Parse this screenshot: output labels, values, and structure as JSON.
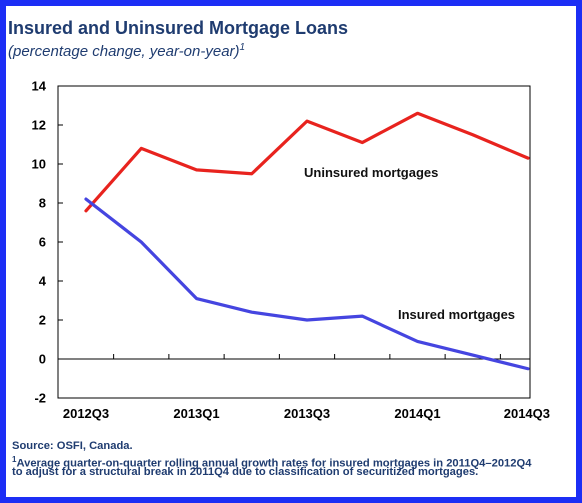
{
  "header": {
    "title": "Insured and Uninsured Mortgage Loans",
    "subtitle": "(percentage change, year-on-year)",
    "subtitle_footnote_mark": "1"
  },
  "footer": {
    "source": "Source: OSFI, Canada.",
    "footnote_mark": "1",
    "footnote_line1": "Average quarter-on-quarter rolling annual growth rates for insured mortgages in 2011Q4–2012Q4",
    "footnote_line2": "to adjust for a structural break in 2011Q4 due to classification of securitized mortgages."
  },
  "colors": {
    "frame": "#1c2ef5",
    "text": "#1f3c70",
    "uninsured": "#e8231e",
    "insured": "#4545e0",
    "axis": "#000000"
  },
  "chart_data": {
    "type": "line",
    "x": [
      "2012Q3",
      "2012Q4",
      "2013Q1",
      "2013Q2",
      "2013Q3",
      "2013Q4",
      "2014Q1",
      "2014Q2",
      "2014Q3"
    ],
    "x_tick_labels": [
      "2012Q3",
      "2013Q1",
      "2013Q3",
      "2014Q1",
      "2014Q3"
    ],
    "ylim": [
      -2,
      14
    ],
    "y_ticks": [
      -2,
      0,
      2,
      4,
      6,
      8,
      10,
      12,
      14
    ],
    "grid": false,
    "legend": "inline labels",
    "series": [
      {
        "name": "Uninsured mortgages",
        "color": "#e8231e",
        "values": [
          7.6,
          10.8,
          9.7,
          9.5,
          12.2,
          11.1,
          12.6,
          11.5,
          10.3
        ]
      },
      {
        "name": "Insured mortgages",
        "color": "#4545e0",
        "values": [
          8.2,
          6.0,
          3.1,
          2.4,
          2.0,
          2.2,
          0.9,
          0.2,
          -0.5
        ]
      }
    ]
  }
}
